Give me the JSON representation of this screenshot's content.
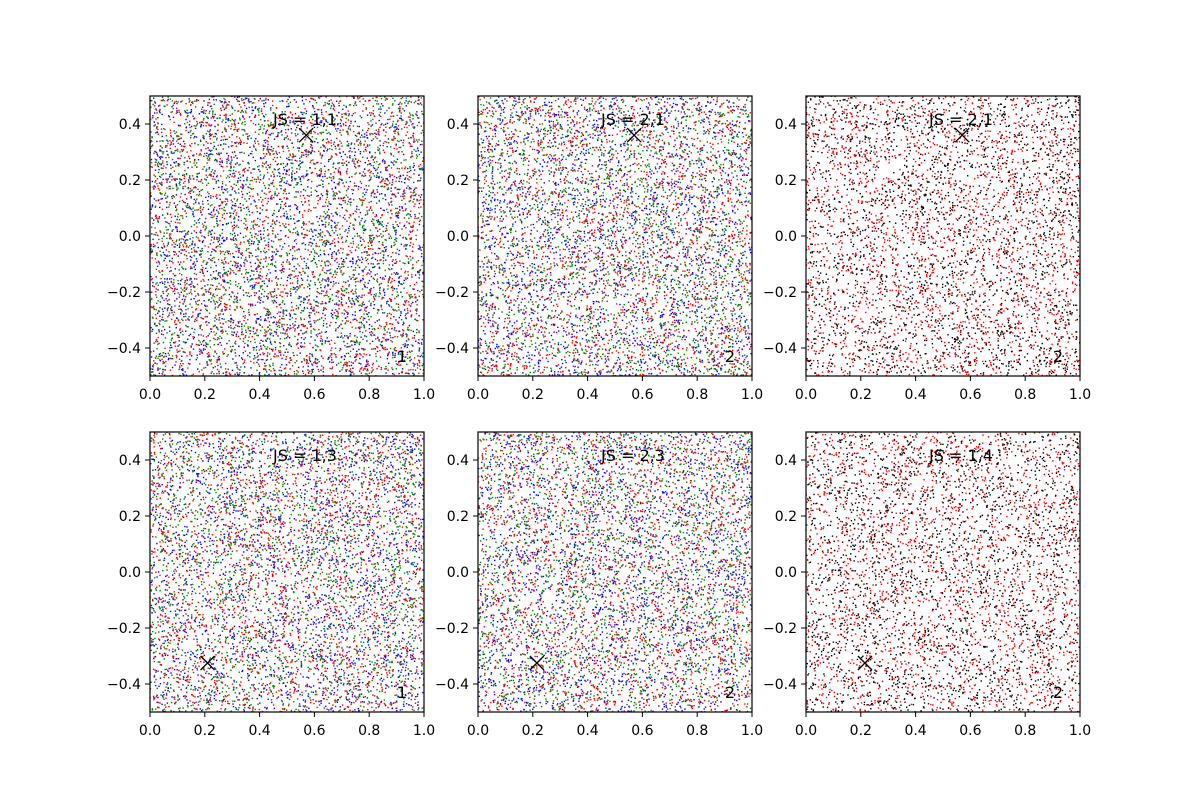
{
  "figure": {
    "background": "#ffffff"
  },
  "chart_data": [
    {
      "type": "scatter",
      "title": "",
      "annotation": "JS = 1,1",
      "corner_label": "1",
      "marker": {
        "x": 0.57,
        "y": 0.36,
        "symbol": "x"
      },
      "xlim": [
        0.0,
        1.0
      ],
      "ylim": [
        -0.5,
        0.5
      ],
      "xticks": [
        "0.0",
        "0.2",
        "0.4",
        "0.6",
        "0.8",
        "1.0"
      ],
      "yticks": [
        "−0.4",
        "−0.2",
        "0.0",
        "0.2",
        "0.4"
      ],
      "xtick_values": [
        0.0,
        0.2,
        0.4,
        0.6,
        0.8,
        1.0
      ],
      "ytick_values": [
        -0.4,
        -0.2,
        0.0,
        0.2,
        0.4
      ],
      "series_colors": [
        "#0000ff",
        "#008000",
        "#ff0000"
      ],
      "points_per_series": 2200,
      "grid": false
    },
    {
      "type": "scatter",
      "title": "",
      "annotation": "JS = 2,1",
      "corner_label": "2",
      "marker": {
        "x": 0.57,
        "y": 0.36,
        "symbol": "x"
      },
      "xlim": [
        0.0,
        1.0
      ],
      "ylim": [
        -0.5,
        0.5
      ],
      "xticks": [
        "0.0",
        "0.2",
        "0.4",
        "0.6",
        "0.8",
        "1.0"
      ],
      "yticks": [
        "−0.4",
        "−0.2",
        "0.0",
        "0.2",
        "0.4"
      ],
      "xtick_values": [
        0.0,
        0.2,
        0.4,
        0.6,
        0.8,
        1.0
      ],
      "ytick_values": [
        -0.4,
        -0.2,
        0.0,
        0.2,
        0.4
      ],
      "series_colors": [
        "#0000ff",
        "#008000",
        "#ff0000"
      ],
      "points_per_series": 2200,
      "grid": false
    },
    {
      "type": "scatter",
      "title": "",
      "annotation": "JS = 2,1",
      "corner_label": "2",
      "marker": {
        "x": 0.57,
        "y": 0.36,
        "symbol": "x"
      },
      "xlim": [
        0.0,
        1.0
      ],
      "ylim": [
        -0.5,
        0.5
      ],
      "xticks": [
        "0.0",
        "0.2",
        "0.4",
        "0.6",
        "0.8",
        "1.0"
      ],
      "yticks": [
        "−0.4",
        "−0.2",
        "0.0",
        "0.2",
        "0.4"
      ],
      "xtick_values": [
        0.0,
        0.2,
        0.4,
        0.6,
        0.8,
        1.0
      ],
      "ytick_values": [
        -0.4,
        -0.2,
        0.0,
        0.2,
        0.4
      ],
      "series_colors": [
        "#ff0000",
        "#000000"
      ],
      "points_per_series": 2400,
      "grid": false
    },
    {
      "type": "scatter",
      "title": "",
      "annotation": "JS = 1,3",
      "corner_label": "1",
      "marker": {
        "x": 0.21,
        "y": -0.325,
        "symbol": "x"
      },
      "xlim": [
        0.0,
        1.0
      ],
      "ylim": [
        -0.5,
        0.5
      ],
      "xticks": [
        "0.0",
        "0.2",
        "0.4",
        "0.6",
        "0.8",
        "1.0"
      ],
      "yticks": [
        "−0.4",
        "−0.2",
        "0.0",
        "0.2",
        "0.4"
      ],
      "xtick_values": [
        0.0,
        0.2,
        0.4,
        0.6,
        0.8,
        1.0
      ],
      "ytick_values": [
        -0.4,
        -0.2,
        0.0,
        0.2,
        0.4
      ],
      "series_colors": [
        "#0000ff",
        "#008000",
        "#ff0000"
      ],
      "points_per_series": 2200,
      "grid": false
    },
    {
      "type": "scatter",
      "title": "",
      "annotation": "JS = 2,3",
      "corner_label": "2",
      "marker": {
        "x": 0.215,
        "y": -0.325,
        "symbol": "x"
      },
      "xlim": [
        0.0,
        1.0
      ],
      "ylim": [
        -0.5,
        0.5
      ],
      "xticks": [
        "0.0",
        "0.2",
        "0.4",
        "0.6",
        "0.8",
        "1.0"
      ],
      "yticks": [
        "−0.4",
        "−0.2",
        "0.0",
        "0.2",
        "0.4"
      ],
      "xtick_values": [
        0.0,
        0.2,
        0.4,
        0.6,
        0.8,
        1.0
      ],
      "ytick_values": [
        -0.4,
        -0.2,
        0.0,
        0.2,
        0.4
      ],
      "series_colors": [
        "#0000ff",
        "#008000",
        "#ff0000"
      ],
      "points_per_series": 2200,
      "grid": false
    },
    {
      "type": "scatter",
      "title": "",
      "annotation": "JS = 1,4",
      "corner_label": "2",
      "marker": {
        "x": 0.215,
        "y": -0.325,
        "symbol": "x"
      },
      "xlim": [
        0.0,
        1.0
      ],
      "ylim": [
        -0.5,
        0.5
      ],
      "xticks": [
        "0.0",
        "0.2",
        "0.4",
        "0.6",
        "0.8",
        "1.0"
      ],
      "yticks": [
        "−0.4",
        "−0.2",
        "0.0",
        "0.2",
        "0.4"
      ],
      "xtick_values": [
        0.0,
        0.2,
        0.4,
        0.6,
        0.8,
        1.0
      ],
      "ytick_values": [
        -0.4,
        -0.2,
        0.0,
        0.2,
        0.4
      ],
      "series_colors": [
        "#ff0000",
        "#000000"
      ],
      "points_per_series": 2400,
      "grid": false
    }
  ]
}
